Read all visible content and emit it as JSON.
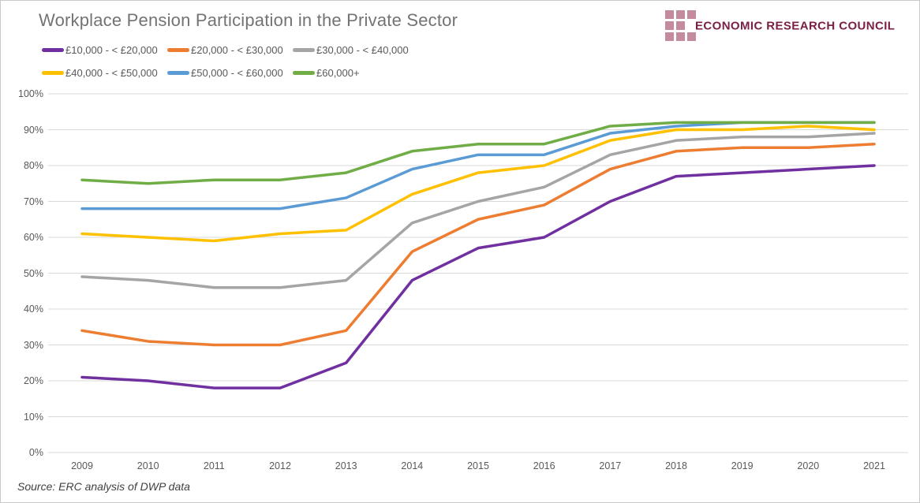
{
  "title": "Workplace Pension Participation in the Private Sector",
  "logo": {
    "text": "ECONOMIC RESEARCH COUNCIL",
    "text_color": "#7a2044",
    "square_color": "#c48b9e"
  },
  "source": "Source: ERC analysis of DWP data",
  "chart_data": {
    "type": "line",
    "title": "Workplace Pension Participation in the Private Sector",
    "x": [
      2009,
      2010,
      2011,
      2012,
      2013,
      2014,
      2015,
      2016,
      2017,
      2018,
      2019,
      2020,
      2021
    ],
    "series": [
      {
        "name": "£10,000 - < £20,000",
        "color": "#7030a0",
        "values": [
          21,
          20,
          18,
          18,
          25,
          48,
          57,
          60,
          70,
          77,
          78,
          79,
          80
        ]
      },
      {
        "name": "£20,000 - < £30,000",
        "color": "#ed7d31",
        "values": [
          34,
          31,
          30,
          30,
          34,
          56,
          65,
          69,
          79,
          84,
          85,
          85,
          86
        ]
      },
      {
        "name": "£30,000 - < £40,000",
        "color": "#a5a5a5",
        "values": [
          49,
          48,
          46,
          46,
          48,
          64,
          70,
          74,
          83,
          87,
          88,
          88,
          89
        ]
      },
      {
        "name": "£40,000 - < £50,000",
        "color": "#ffc000",
        "values": [
          61,
          60,
          59,
          61,
          62,
          72,
          78,
          80,
          87,
          90,
          90,
          91,
          90
        ]
      },
      {
        "name": "£50,000 - < £60,000",
        "color": "#5b9bd5",
        "values": [
          68,
          68,
          68,
          68,
          71,
          79,
          83,
          83,
          89,
          91,
          92,
          92,
          92
        ]
      },
      {
        "name": "£60,000+",
        "color": "#70ad47",
        "values": [
          76,
          75,
          76,
          76,
          78,
          84,
          86,
          86,
          91,
          92,
          92,
          92,
          92
        ]
      }
    ],
    "ylim": [
      0,
      100
    ],
    "yticks": [
      "0%",
      "10%",
      "20%",
      "30%",
      "40%",
      "50%",
      "60%",
      "70%",
      "80%",
      "90%",
      "100%"
    ],
    "grid": "horizontal",
    "gridline_color": "#d9d9d9",
    "legend_position": "top-left"
  }
}
